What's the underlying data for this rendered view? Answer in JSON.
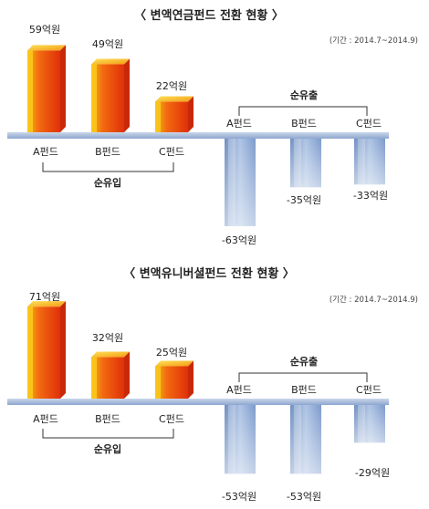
{
  "chart_data": [
    {
      "type": "bar",
      "title": "〈 변액연금펀드 전환 현황 〉",
      "period": "(기간 : 2014.7~2014.9)",
      "inflow_label": "순유입",
      "outflow_label": "순유출",
      "inflow": {
        "categories": [
          "A펀드",
          "B펀드",
          "C펀드"
        ],
        "values": [
          59,
          49,
          22
        ],
        "value_labels": [
          "59억원",
          "49억원",
          "22억원"
        ]
      },
      "outflow": {
        "categories": [
          "A펀드",
          "B펀드",
          "C펀드"
        ],
        "values": [
          -63,
          -35,
          -33
        ],
        "value_labels": [
          "-63억원",
          "-35억원",
          "-33억원"
        ]
      }
    },
    {
      "type": "bar",
      "title": "〈 변액유니버셜펀드 전환 현황 〉",
      "period": "(기간 : 2014.7~2014.9)",
      "inflow_label": "순유입",
      "outflow_label": "순유출",
      "inflow": {
        "categories": [
          "A펀드",
          "B펀드",
          "C펀드"
        ],
        "values": [
          71,
          32,
          25
        ],
        "value_labels": [
          "71억원",
          "32억원",
          "25억원"
        ]
      },
      "outflow": {
        "categories": [
          "A펀드",
          "B펀드",
          "C펀드"
        ],
        "values": [
          -53,
          -53,
          -29
        ],
        "value_labels": [
          "-53억원",
          "-53억원",
          "-29억원"
        ]
      }
    }
  ],
  "colors": {
    "inflow_front": "#e8420c",
    "inflow_side": "#f6d21a",
    "outflow_front": "#8fabd6",
    "outflow_side": "#c8d8ee",
    "baseline": "#9fb4d6",
    "text": "#222222"
  }
}
